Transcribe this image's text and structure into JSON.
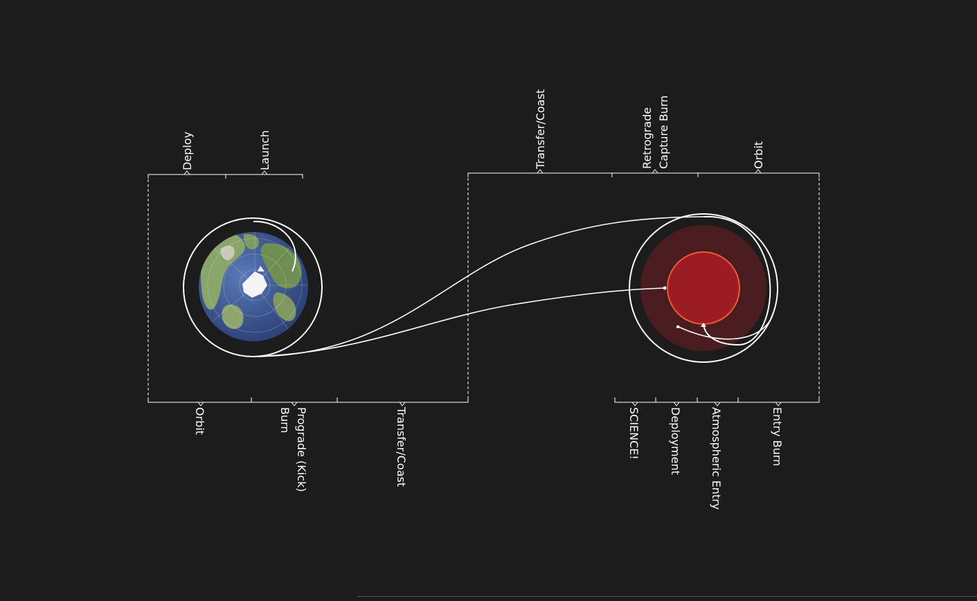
{
  "labels": {
    "deploy": "Deploy",
    "launch": "Launch",
    "orbit_origin": "Orbit",
    "prograde_line1": "Prograde (Kick)",
    "prograde_line2": "Burn",
    "transfer_coast_bottom": "Transfer/Coast",
    "transfer_coast_top": "Transfer/Coast",
    "retrograde_line1": "Retrograde",
    "retrograde_line2": "Capture Burn",
    "orbit_destination": "Orbit",
    "science": "SCIENCE!",
    "deployment": "Deployment",
    "atmospheric_entry": "Atmospheric Entry",
    "entry_burn": "Entry Burn"
  },
  "icons": {
    "origin_planet": "earth-globe-icon",
    "destination_planet": "red-planet-icon"
  },
  "colors": {
    "background": "#1c1c1c",
    "line": "#ffffff",
    "earth_ocean": "#3d5a98",
    "earth_land": "#7a9a5c",
    "red_planet_atmosphere": "#4a1c1f",
    "red_planet_surface": "#9b1c22",
    "red_planet_outline": "#ef5a2e"
  }
}
